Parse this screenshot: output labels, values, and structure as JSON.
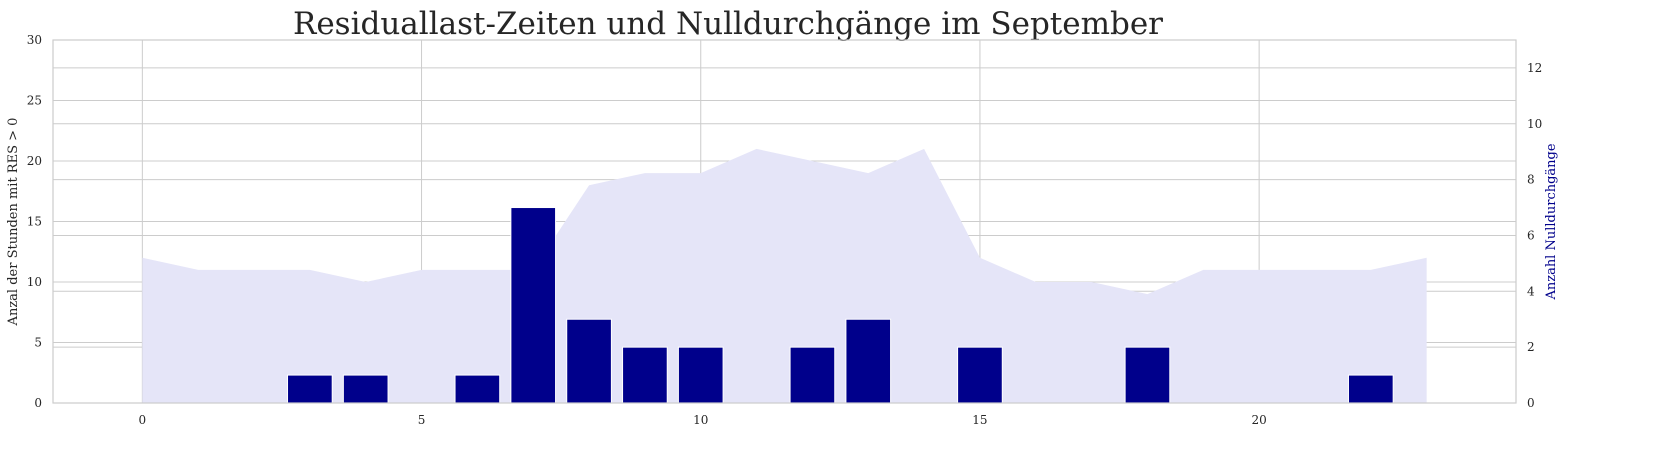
{
  "chart_data": {
    "type": "bar",
    "title": "Residuallast-Zeiten und Nulldurchgänge im September",
    "x": [
      0,
      1,
      2,
      3,
      4,
      5,
      6,
      7,
      8,
      9,
      10,
      11,
      12,
      13,
      14,
      15,
      16,
      17,
      18,
      19,
      20,
      21,
      22,
      23
    ],
    "xlim": [
      -1.6,
      24.6
    ],
    "xticks": [
      0,
      5,
      10,
      15,
      20
    ],
    "grid": true,
    "series": [
      {
        "type": "area",
        "axis": "left",
        "color": "#e5e5f8",
        "values": [
          12,
          11,
          11,
          11,
          10,
          11,
          11,
          11,
          18,
          19,
          19,
          21,
          20,
          19,
          21,
          12,
          10,
          10,
          9,
          11,
          11,
          11,
          11,
          12
        ]
      },
      {
        "type": "bar",
        "axis": "right",
        "color": "#00008b",
        "values": [
          0,
          0,
          0,
          1,
          1,
          0,
          1,
          7,
          3,
          2,
          2,
          0,
          2,
          3,
          0,
          2,
          0,
          0,
          2,
          0,
          0,
          0,
          1,
          0
        ]
      }
    ],
    "y_left": {
      "label": "Anzal der Stunden mit RES > 0",
      "lim": [
        0,
        30
      ],
      "ticks": [
        0,
        5,
        10,
        15,
        20,
        25,
        30
      ],
      "color": "#262626"
    },
    "y_right": {
      "label": "Anzahl Nulldurchgänge",
      "lim": [
        0,
        13
      ],
      "ticks": [
        0,
        2,
        4,
        6,
        8,
        10,
        12
      ],
      "color": "#00008b"
    }
  }
}
